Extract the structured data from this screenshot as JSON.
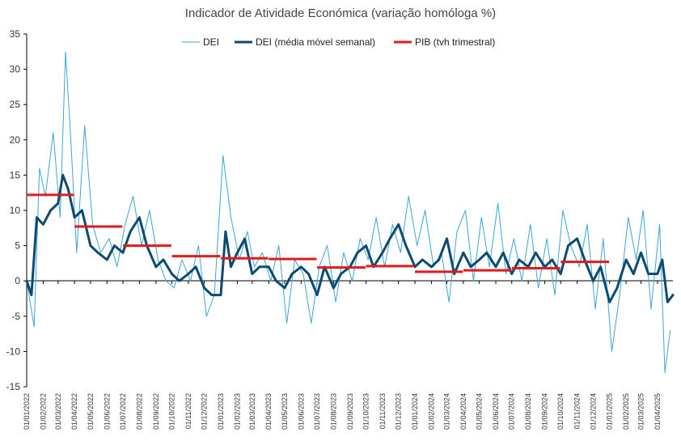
{
  "chart_data": {
    "type": "line",
    "title": "Indicador de Atividade Económica (variação homóloga %)",
    "xlabel": "",
    "ylabel": "",
    "ylim": [
      -15,
      35
    ],
    "y_ticks": [
      -15,
      -10,
      -5,
      0,
      5,
      10,
      15,
      20,
      25,
      30,
      35
    ],
    "x_range": [
      "2022-01-01",
      "2025-04-30"
    ],
    "x_tick_labels": [
      "01/01/2022",
      "01/02/2022",
      "01/03/2022",
      "01/04/2022",
      "01/05/2022",
      "01/06/2022",
      "01/07/2022",
      "01/08/2022",
      "01/09/2022",
      "01/10/2022",
      "01/11/2022",
      "01/12/2022",
      "01/01/2023",
      "01/02/2023",
      "01/03/2023",
      "01/04/2023",
      "01/05/2023",
      "01/06/2023",
      "01/07/2023",
      "01/08/2023",
      "01/09/2023",
      "01/10/2023",
      "01/11/2023",
      "01/12/2023",
      "01/01/2024",
      "01/02/2024",
      "01/03/2024",
      "01/04/2024",
      "01/05/2024",
      "01/06/2024",
      "01/07/2024",
      "01/08/2024",
      "01/09/2024",
      "01/10/2024",
      "01/11/2024",
      "01/12/2024",
      "01/01/2025",
      "01/02/2025",
      "01/03/2025",
      "01/04/2025"
    ],
    "grid": false,
    "legend_position": "top",
    "series": [
      {
        "name": "DEI",
        "style": "thin",
        "color": "#3aa7d4",
        "x": [
          "2022-01-01",
          "2022-01-15",
          "2022-01-25",
          "2022-02-05",
          "2022-02-20",
          "2022-03-05",
          "2022-03-15",
          "2022-03-25",
          "2022-04-05",
          "2022-04-20",
          "2022-05-05",
          "2022-05-20",
          "2022-06-05",
          "2022-06-20",
          "2022-07-05",
          "2022-07-20",
          "2022-08-05",
          "2022-08-20",
          "2022-09-05",
          "2022-09-20",
          "2022-10-05",
          "2022-10-20",
          "2022-11-05",
          "2022-11-20",
          "2022-12-05",
          "2022-12-20",
          "2023-01-05",
          "2023-01-20",
          "2023-02-05",
          "2023-02-20",
          "2023-03-05",
          "2023-03-20",
          "2023-04-05",
          "2023-04-20",
          "2023-05-05",
          "2023-05-20",
          "2023-06-05",
          "2023-06-20",
          "2023-07-05",
          "2023-07-20",
          "2023-08-05",
          "2023-08-20",
          "2023-09-05",
          "2023-09-20",
          "2023-10-05",
          "2023-10-20",
          "2023-11-05",
          "2023-11-20",
          "2023-12-05",
          "2023-12-20",
          "2024-01-05",
          "2024-01-20",
          "2024-02-05",
          "2024-02-20",
          "2024-03-05",
          "2024-03-20",
          "2024-04-05",
          "2024-04-20",
          "2024-05-05",
          "2024-05-20",
          "2024-06-05",
          "2024-06-20",
          "2024-07-05",
          "2024-07-20",
          "2024-08-05",
          "2024-08-20",
          "2024-09-05",
          "2024-09-20",
          "2024-10-05",
          "2024-10-20",
          "2024-11-05",
          "2024-11-20",
          "2024-12-05",
          "2024-12-20",
          "2025-01-05",
          "2025-01-20",
          "2025-02-05",
          "2025-02-20",
          "2025-03-05",
          "2025-03-20",
          "2025-04-05",
          "2025-04-15",
          "2025-04-25"
        ],
        "values": [
          0,
          -6.5,
          16,
          12,
          21,
          9,
          32.5,
          20,
          4,
          22,
          8,
          4,
          6,
          2,
          8,
          12,
          5,
          10,
          3,
          0,
          -1,
          3,
          0,
          5,
          -5,
          -2,
          17.8,
          9,
          3,
          7,
          2,
          4,
          0,
          5,
          -6,
          3,
          1,
          -6,
          2,
          5,
          -3,
          4,
          0,
          6,
          3,
          9,
          2,
          8,
          4,
          12,
          5,
          10,
          2,
          4,
          -3,
          7,
          10,
          0,
          9,
          2,
          11,
          1,
          6,
          0,
          8,
          -1,
          6,
          -2,
          10,
          5,
          2,
          8,
          -4,
          6,
          -10,
          -2,
          9,
          3,
          10,
          -4,
          8,
          -13,
          -7
        ]
      },
      {
        "name": "DEI (média móvel semanal)",
        "style": "thick",
        "color": "#0b4a72",
        "x": [
          "2022-01-01",
          "2022-01-10",
          "2022-01-20",
          "2022-02-01",
          "2022-02-15",
          "2022-03-01",
          "2022-03-10",
          "2022-03-20",
          "2022-04-01",
          "2022-04-15",
          "2022-05-01",
          "2022-05-15",
          "2022-06-01",
          "2022-06-15",
          "2022-07-01",
          "2022-07-15",
          "2022-08-01",
          "2022-08-15",
          "2022-09-01",
          "2022-09-15",
          "2022-10-01",
          "2022-10-15",
          "2022-11-01",
          "2022-11-15",
          "2022-12-01",
          "2022-12-15",
          "2023-01-01",
          "2023-01-10",
          "2023-01-20",
          "2023-02-01",
          "2023-02-15",
          "2023-03-01",
          "2023-03-15",
          "2023-04-01",
          "2023-04-15",
          "2023-05-01",
          "2023-05-15",
          "2023-06-01",
          "2023-06-15",
          "2023-07-01",
          "2023-07-15",
          "2023-08-01",
          "2023-08-15",
          "2023-09-01",
          "2023-09-15",
          "2023-10-01",
          "2023-10-15",
          "2023-11-01",
          "2023-11-15",
          "2023-12-01",
          "2023-12-15",
          "2024-01-01",
          "2024-01-15",
          "2024-02-01",
          "2024-02-15",
          "2024-03-01",
          "2024-03-15",
          "2024-04-01",
          "2024-04-15",
          "2024-05-01",
          "2024-05-15",
          "2024-06-01",
          "2024-06-15",
          "2024-07-01",
          "2024-07-15",
          "2024-08-01",
          "2024-08-15",
          "2024-09-01",
          "2024-09-15",
          "2024-10-01",
          "2024-10-15",
          "2024-11-01",
          "2024-11-15",
          "2024-12-01",
          "2024-12-15",
          "2025-01-01",
          "2025-01-15",
          "2025-02-01",
          "2025-02-15",
          "2025-03-01",
          "2025-03-15",
          "2025-04-01",
          "2025-04-10",
          "2025-04-20",
          "2025-04-30"
        ],
        "values": [
          0,
          -2,
          9,
          8,
          10,
          11,
          15,
          13,
          9,
          10,
          5,
          4,
          3,
          5,
          4,
          7,
          9,
          5,
          2,
          3,
          1,
          0,
          1,
          2,
          -1,
          -2,
          -2,
          7,
          2,
          4,
          6,
          1,
          2,
          2,
          0,
          -1,
          1,
          2,
          1,
          -2,
          2,
          -1,
          1,
          2,
          4,
          5,
          2,
          4,
          6,
          8,
          5,
          2,
          3,
          2,
          3,
          6,
          1,
          4,
          2,
          3,
          4,
          2,
          4,
          1,
          3,
          2,
          4,
          2,
          3,
          1,
          5,
          6,
          3,
          0,
          2,
          -3,
          -1,
          3,
          1,
          4,
          1,
          1,
          3,
          -3,
          -2
        ]
      },
      {
        "name": "PIB (tvh trimestral)",
        "style": "step",
        "color": "#e11b1b",
        "segments": [
          {
            "from": "2022-01-01",
            "to": "2022-03-31",
            "value": 12.2
          },
          {
            "from": "2022-04-01",
            "to": "2022-06-30",
            "value": 7.7
          },
          {
            "from": "2022-07-01",
            "to": "2022-09-30",
            "value": 5.0
          },
          {
            "from": "2022-10-01",
            "to": "2022-12-31",
            "value": 3.5
          },
          {
            "from": "2023-01-01",
            "to": "2023-03-31",
            "value": 3.2
          },
          {
            "from": "2023-04-01",
            "to": "2023-06-30",
            "value": 3.1
          },
          {
            "from": "2023-07-01",
            "to": "2023-09-30",
            "value": 1.9
          },
          {
            "from": "2023-10-01",
            "to": "2023-12-31",
            "value": 2.1
          },
          {
            "from": "2024-01-01",
            "to": "2024-03-31",
            "value": 1.3
          },
          {
            "from": "2024-04-01",
            "to": "2024-06-30",
            "value": 1.5
          },
          {
            "from": "2024-07-01",
            "to": "2024-09-30",
            "value": 1.8
          },
          {
            "from": "2024-10-01",
            "to": "2024-12-31",
            "value": 2.7
          }
        ]
      }
    ]
  }
}
